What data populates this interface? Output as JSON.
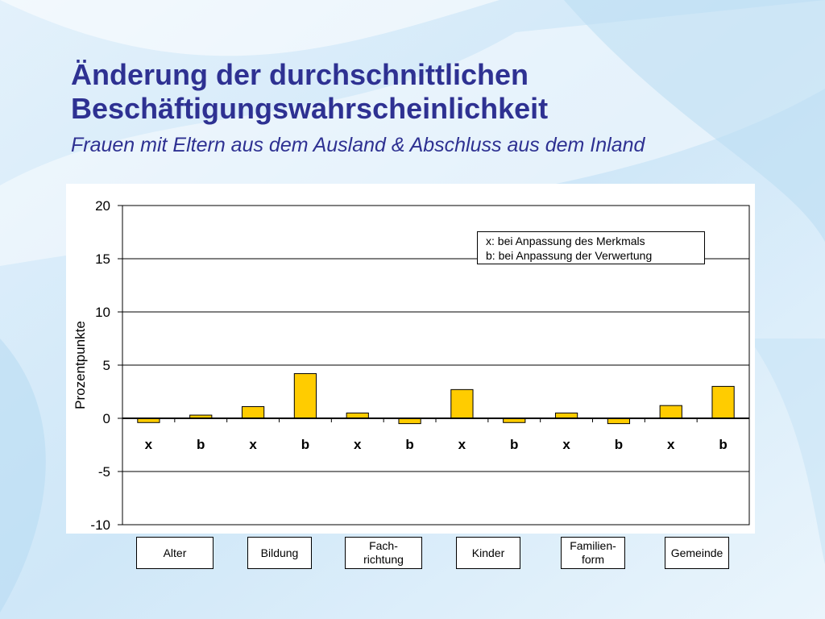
{
  "header": {
    "title_line1": "Änderung der durchschnittlichen",
    "title_line2": "Beschäftigungswahrscheinlichkeit",
    "subtitle": "Frauen mit Eltern aus dem Ausland & Abschluss aus dem Inland"
  },
  "colors": {
    "title": "#2e3192",
    "bar_fill": "#ffcc00",
    "bar_stroke": "#000000"
  },
  "chart_data": {
    "type": "bar",
    "ylabel": "Prozentpunkte",
    "ylim": [
      -10,
      20
    ],
    "yticks": [
      -10,
      -5,
      0,
      5,
      10,
      15,
      20
    ],
    "grid": true,
    "categories": [
      "x",
      "b",
      "x",
      "b",
      "x",
      "b",
      "x",
      "b",
      "x",
      "b",
      "x",
      "b"
    ],
    "values": [
      -0.4,
      0.3,
      1.1,
      4.2,
      0.5,
      -0.5,
      2.7,
      -0.4,
      0.5,
      -0.5,
      1.2,
      3.0
    ],
    "groups": [
      "Alter",
      "Bildung",
      "Fach-\nrichtung",
      "Kinder",
      "Familien-\nform",
      "Gemeinde"
    ],
    "legend": {
      "placement": "top-right",
      "lines": [
        "x: bei Anpassung des Merkmals",
        "b: bei Anpassung der Verwertung"
      ]
    }
  }
}
